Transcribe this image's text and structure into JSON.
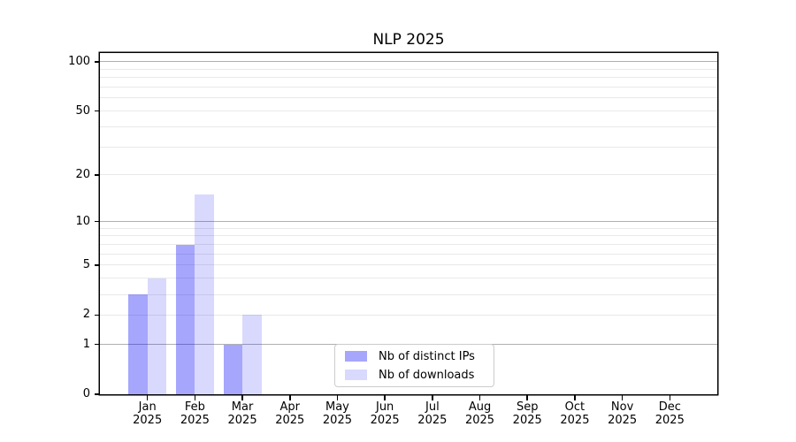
{
  "chart_data": {
    "type": "bar",
    "title": "NLP 2025",
    "scale": "log1p",
    "ylim": [
      0,
      113
    ],
    "grid": {
      "major": [
        1,
        10,
        100
      ],
      "minor": [
        2,
        3,
        4,
        5,
        6,
        7,
        8,
        9,
        20,
        30,
        40,
        50,
        60,
        70,
        80,
        90
      ]
    },
    "yticks": [
      {
        "v": 0,
        "label": "0"
      },
      {
        "v": 1,
        "label": "1"
      },
      {
        "v": 2,
        "label": "2"
      },
      {
        "v": 5,
        "label": "5"
      },
      {
        "v": 10,
        "label": "10"
      },
      {
        "v": 20,
        "label": "20"
      },
      {
        "v": 50,
        "label": "50"
      },
      {
        "v": 100,
        "label": "100"
      }
    ],
    "categories": [
      {
        "month": "Jan",
        "year": "2025"
      },
      {
        "month": "Feb",
        "year": "2025"
      },
      {
        "month": "Mar",
        "year": "2025"
      },
      {
        "month": "Apr",
        "year": "2025"
      },
      {
        "month": "May",
        "year": "2025"
      },
      {
        "month": "Jun",
        "year": "2025"
      },
      {
        "month": "Jul",
        "year": "2025"
      },
      {
        "month": "Aug",
        "year": "2025"
      },
      {
        "month": "Sep",
        "year": "2025"
      },
      {
        "month": "Oct",
        "year": "2025"
      },
      {
        "month": "Nov",
        "year": "2025"
      },
      {
        "month": "Dec",
        "year": "2025"
      }
    ],
    "series": [
      {
        "name": "Nb of distinct IPs",
        "color": "rgba(0, 0, 248, 0.35)",
        "values": [
          3,
          7,
          1,
          0,
          0,
          0,
          0,
          0,
          0,
          0,
          0,
          0
        ]
      },
      {
        "name": "Nb of downloads",
        "color": "rgba(0, 0, 248, 0.15)",
        "values": [
          4,
          15,
          2,
          0,
          0,
          0,
          0,
          0,
          0,
          0,
          0,
          0
        ]
      }
    ],
    "legend_position": "lower-center inside plot",
    "colors": {
      "spine": "#000000",
      "major_grid": "#b0b0b0",
      "minor_grid": "#e9e9e9",
      "background": "#ffffff"
    }
  }
}
